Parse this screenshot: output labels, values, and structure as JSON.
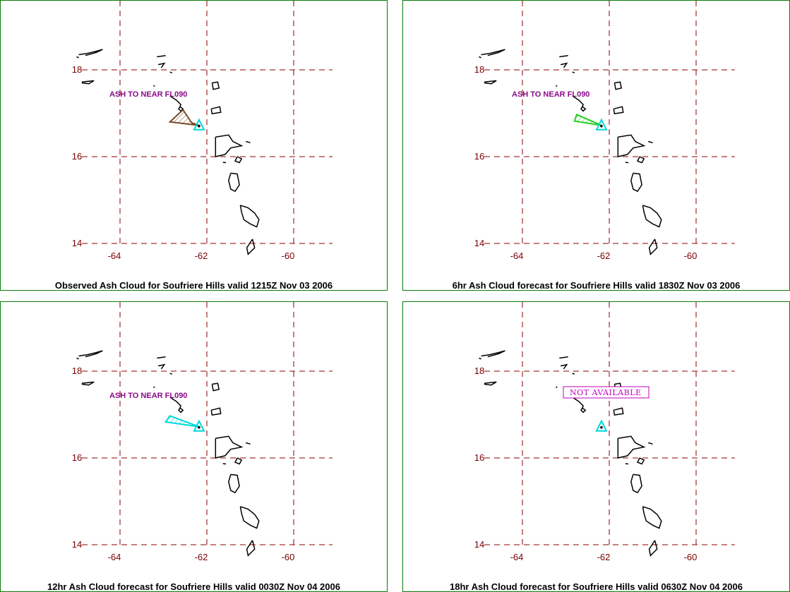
{
  "colors": {
    "border": "#0a7a0a",
    "grid": "#8b0000",
    "axis_text": "#7a0000",
    "land": "#000000",
    "volcano": "#00d8d8",
    "label": "#8a0a8a",
    "not_available": "#c000c0"
  },
  "map_extent": {
    "lon_min": -65,
    "lon_max": -59,
    "lat_min": 14,
    "lat_max": 19
  },
  "gridlines": {
    "lons": [
      -64,
      -62,
      -60
    ],
    "lats": [
      14,
      16,
      18
    ]
  },
  "lon_ticks": [
    "-64",
    "-62",
    "-60"
  ],
  "lat_ticks": [
    "18",
    "16",
    "14"
  ],
  "volcano": {
    "name": "Soufriere Hills",
    "lon": -62.18,
    "lat": 16.72,
    "icon": "triangle-icon"
  },
  "panels": [
    {
      "caption": "Observed Ash Cloud for Soufriere  Hills valid 1215Z Nov 03 2006",
      "label": "ASH TO NEAR FL090",
      "status": "observed",
      "cloud_color": "#7a4a2a",
      "cloud_polygon": [
        [
          -62.18,
          16.72
        ],
        [
          -62.85,
          16.8
        ],
        [
          -62.55,
          17.08
        ],
        [
          -62.35,
          16.78
        ]
      ]
    },
    {
      "caption": "6hr Ash Cloud forecast for Soufriere  Hills valid 1830Z Nov 03 2006",
      "label": "ASH TO NEAR FL090",
      "status": "forecast",
      "cloud_color": "#22cc22",
      "cloud_polygon": [
        [
          -62.18,
          16.72
        ],
        [
          -62.8,
          16.82
        ],
        [
          -62.75,
          16.97
        ]
      ]
    },
    {
      "caption": "12hr Ash Cloud forecast for Soufriere  Hills valid 0030Z Nov 04 2006",
      "label": "ASH TO NEAR FL090",
      "status": "forecast",
      "cloud_color": "#00d8d8",
      "cloud_polygon": [
        [
          -62.18,
          16.72
        ],
        [
          -62.95,
          16.83
        ],
        [
          -62.85,
          16.97
        ]
      ]
    },
    {
      "caption": "18hr Ash Cloud forecast for Soufriere  Hills valid 0630Z Nov 04 2006",
      "label": "NOT AVAILABLE",
      "status": "not_available",
      "cloud_color": "",
      "cloud_polygon": []
    }
  ]
}
